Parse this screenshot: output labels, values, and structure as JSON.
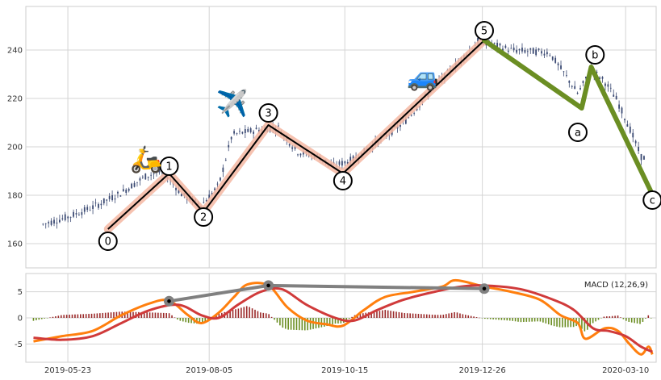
{
  "chart_data": [
    {
      "type": "candlestick",
      "panel": "price",
      "ylim": [
        150,
        258
      ],
      "yticks": [
        160,
        180,
        200,
        220,
        240
      ],
      "x_range": [
        "2019-05-01",
        "2020-03-26"
      ],
      "x_ticks": [
        "2019-05-23",
        "2019-08-05",
        "2019-10-15",
        "2019-12-26",
        "2020-03-10"
      ],
      "grid": true,
      "candle_colors": {
        "body": "#3b4a73",
        "wick": "#3b4a73"
      },
      "price_path": [
        [
          "2019-05-10",
          168
        ],
        [
          "2019-05-23",
          171
        ],
        [
          "2019-06-05",
          175
        ],
        [
          "2019-06-20",
          181
        ],
        [
          "2019-07-03",
          188
        ],
        [
          "2019-07-12",
          190
        ],
        [
          "2019-07-22",
          180
        ],
        [
          "2019-08-01",
          176
        ],
        [
          "2019-08-10",
          184
        ],
        [
          "2019-08-17",
          205
        ],
        [
          "2019-08-30",
          207
        ],
        [
          "2019-09-10",
          208
        ],
        [
          "2019-09-20",
          198
        ],
        [
          "2019-10-01",
          196
        ],
        [
          "2019-10-09",
          192
        ],
        [
          "2019-10-20",
          195
        ],
        [
          "2019-11-01",
          202
        ],
        [
          "2019-11-15",
          210
        ],
        [
          "2019-12-01",
          225
        ],
        [
          "2019-12-10",
          232
        ],
        [
          "2019-12-24",
          244
        ],
        [
          "2020-01-10",
          240
        ],
        [
          "2020-01-30",
          239
        ],
        [
          "2020-02-08",
          229
        ],
        [
          "2020-02-14",
          222
        ],
        [
          "2020-02-21",
          232
        ],
        [
          "2020-02-28",
          227
        ],
        [
          "2020-03-05",
          220
        ],
        [
          "2020-03-12",
          208
        ],
        [
          "2020-03-18",
          196
        ],
        [
          "2020-03-21",
          195
        ]
      ],
      "elliott_impulse": {
        "color": "#000000",
        "highlight_color": "#f4b7a2",
        "points": [
          {
            "label": "0",
            "date": "2019-06-13",
            "value": 166
          },
          {
            "label": "1",
            "date": "2019-07-15",
            "value": 189
          },
          {
            "label": "2",
            "date": "2019-08-02",
            "value": 173
          },
          {
            "label": "3",
            "date": "2019-09-05",
            "value": 209
          },
          {
            "label": "4",
            "date": "2019-10-14",
            "value": 189
          },
          {
            "label": "5",
            "date": "2019-12-27",
            "value": 244
          }
        ]
      },
      "elliott_correction": {
        "color": "#6b8e23",
        "points": [
          {
            "label": "a",
            "date": "2020-02-16",
            "value": 216
          },
          {
            "label": "b",
            "date": "2020-02-21",
            "value": 233
          },
          {
            "label": "c",
            "date": "2020-03-23",
            "value": 182
          }
        ]
      },
      "label_positions": {
        "0": [
          "2019-06-13",
          161
        ],
        "1": [
          "2019-07-15",
          192
        ],
        "2": [
          "2019-08-02",
          171
        ],
        "3": [
          "2019-09-05",
          214
        ],
        "4": [
          "2019-10-14",
          186
        ],
        "5": [
          "2019-12-27",
          248
        ],
        "a": [
          "2020-02-14",
          206
        ],
        "b": [
          "2020-02-23",
          238
        ],
        "c": [
          "2020-03-24",
          178
        ]
      },
      "icons": [
        {
          "name": "scooter-icon",
          "glyph": "🛵",
          "date": "2019-07-03",
          "value": 195
        },
        {
          "name": "airplane-icon",
          "glyph": "✈️",
          "date": "2019-08-17",
          "value": 218
        },
        {
          "name": "car-icon",
          "glyph": "🚙",
          "date": "2019-11-25",
          "value": 229
        }
      ]
    },
    {
      "type": "line",
      "panel": "macd",
      "title": "MACD (12,26,9)",
      "ylim": [
        -8.5,
        8.5
      ],
      "yticks": [
        5,
        0,
        -5
      ],
      "grid": true,
      "series": [
        {
          "color": "#ff7f0e",
          "values": [
            [
              "2019-05-05",
              -4.5
            ],
            [
              "2019-05-20",
              -3.5
            ],
            [
              "2019-06-05",
              -2.5
            ],
            [
              "2019-06-20",
              0.5
            ],
            [
              "2019-07-05",
              2.8
            ],
            [
              "2019-07-15",
              3.3
            ],
            [
              "2019-07-25",
              0.5
            ],
            [
              "2019-08-01",
              -1.0
            ],
            [
              "2019-08-10",
              1.0
            ],
            [
              "2019-08-18",
              4.0
            ],
            [
              "2019-08-25",
              6.4
            ],
            [
              "2019-09-05",
              6.2
            ],
            [
              "2019-09-15",
              2.0
            ],
            [
              "2019-09-25",
              -0.5
            ],
            [
              "2019-10-05",
              -1.2
            ],
            [
              "2019-10-14",
              -1.5
            ],
            [
              "2019-10-25",
              1.5
            ],
            [
              "2019-11-05",
              4.0
            ],
            [
              "2019-11-20",
              5.0
            ],
            [
              "2019-12-05",
              6.0
            ],
            [
              "2019-12-12",
              7.2
            ],
            [
              "2019-12-27",
              6.0
            ],
            [
              "2020-01-10",
              5.0
            ],
            [
              "2020-01-25",
              3.5
            ],
            [
              "2020-02-05",
              0.5
            ],
            [
              "2020-02-14",
              -1.0
            ],
            [
              "2020-02-18",
              -4.0
            ],
            [
              "2020-02-28",
              -2.0
            ],
            [
              "2020-03-06",
              -2.5
            ],
            [
              "2020-03-12",
              -5.0
            ],
            [
              "2020-03-18",
              -7.0
            ],
            [
              "2020-03-22",
              -5.5
            ],
            [
              "2020-03-24",
              -7.0
            ]
          ]
        },
        {
          "color": "#d03a3a",
          "values": [
            [
              "2019-05-05",
              -3.8
            ],
            [
              "2019-05-20",
              -4.2
            ],
            [
              "2019-06-05",
              -3.5
            ],
            [
              "2019-06-20",
              -1.0
            ],
            [
              "2019-07-05",
              1.5
            ],
            [
              "2019-07-20",
              2.5
            ],
            [
              "2019-08-01",
              0.5
            ],
            [
              "2019-08-10",
              0.0
            ],
            [
              "2019-08-20",
              2.5
            ],
            [
              "2019-09-01",
              5.0
            ],
            [
              "2019-09-12",
              5.5
            ],
            [
              "2019-09-25",
              2.5
            ],
            [
              "2019-10-10",
              0.0
            ],
            [
              "2019-10-20",
              -0.5
            ],
            [
              "2019-11-01",
              1.5
            ],
            [
              "2019-11-15",
              3.5
            ],
            [
              "2019-12-01",
              5.0
            ],
            [
              "2019-12-15",
              6.0
            ],
            [
              "2019-12-27",
              6.2
            ],
            [
              "2020-01-15",
              5.5
            ],
            [
              "2020-02-01",
              3.5
            ],
            [
              "2020-02-12",
              1.5
            ],
            [
              "2020-02-22",
              -2.0
            ],
            [
              "2020-03-01",
              -2.5
            ],
            [
              "2020-03-10",
              -3.5
            ],
            [
              "2020-03-18",
              -5.5
            ],
            [
              "2020-03-24",
              -6.5
            ]
          ]
        }
      ],
      "histogram": {
        "positive_color": "#9b2a2a",
        "negative_color": "#6b8e23"
      },
      "divergence_line": {
        "color": "#808080",
        "points": [
          {
            "date": "2019-07-15",
            "value": 3.2
          },
          {
            "date": "2019-09-05",
            "value": 6.2
          },
          {
            "date": "2019-12-27",
            "value": 5.6
          }
        ]
      }
    }
  ]
}
